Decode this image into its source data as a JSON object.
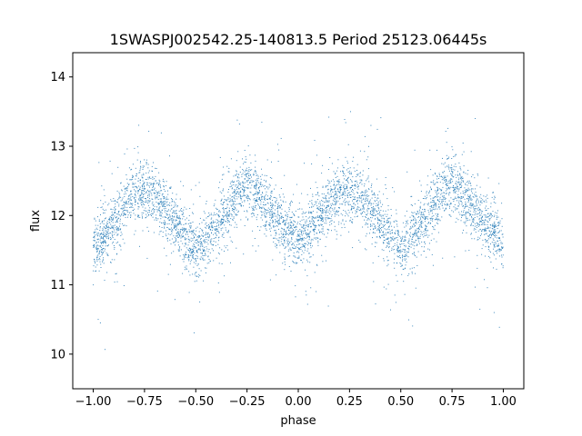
{
  "chart_data": {
    "type": "scatter",
    "title": "1SWASPJ002542.25-140813.5 Period 25123.06445s",
    "xlabel": "phase",
    "ylabel": "flux",
    "xlim": [
      -1.1,
      1.1
    ],
    "ylim": [
      9.5,
      14.35
    ],
    "xticks": [
      -1.0,
      -0.75,
      -0.5,
      -0.25,
      0.0,
      0.25,
      0.5,
      0.75,
      1.0
    ],
    "xtick_labels": [
      "−1.00",
      "−0.75",
      "−0.50",
      "−0.25",
      "0.00",
      "0.25",
      "0.50",
      "0.75",
      "1.00"
    ],
    "yticks": [
      10,
      11,
      12,
      13,
      14
    ],
    "ytick_labels": [
      "10",
      "11",
      "12",
      "13",
      "14"
    ],
    "grid": false,
    "marker_color": "#1f77b4",
    "series": [
      {
        "x": [
          -1.0,
          -0.9,
          -0.8,
          -0.75,
          -0.7,
          -0.6,
          -0.5,
          -0.4,
          -0.3,
          -0.25,
          -0.2,
          -0.1,
          0.0,
          0.1,
          0.2,
          0.25,
          0.3,
          0.4,
          0.5,
          0.6,
          0.7,
          0.75,
          0.8,
          0.9,
          1.0
        ],
        "values": [
          11.5,
          11.9,
          12.3,
          12.4,
          12.3,
          11.9,
          11.45,
          11.85,
          12.3,
          12.45,
          12.3,
          11.95,
          11.6,
          11.95,
          12.3,
          12.4,
          12.3,
          11.9,
          11.45,
          11.85,
          12.3,
          12.45,
          12.3,
          11.95,
          11.6
        ]
      }
    ]
  }
}
